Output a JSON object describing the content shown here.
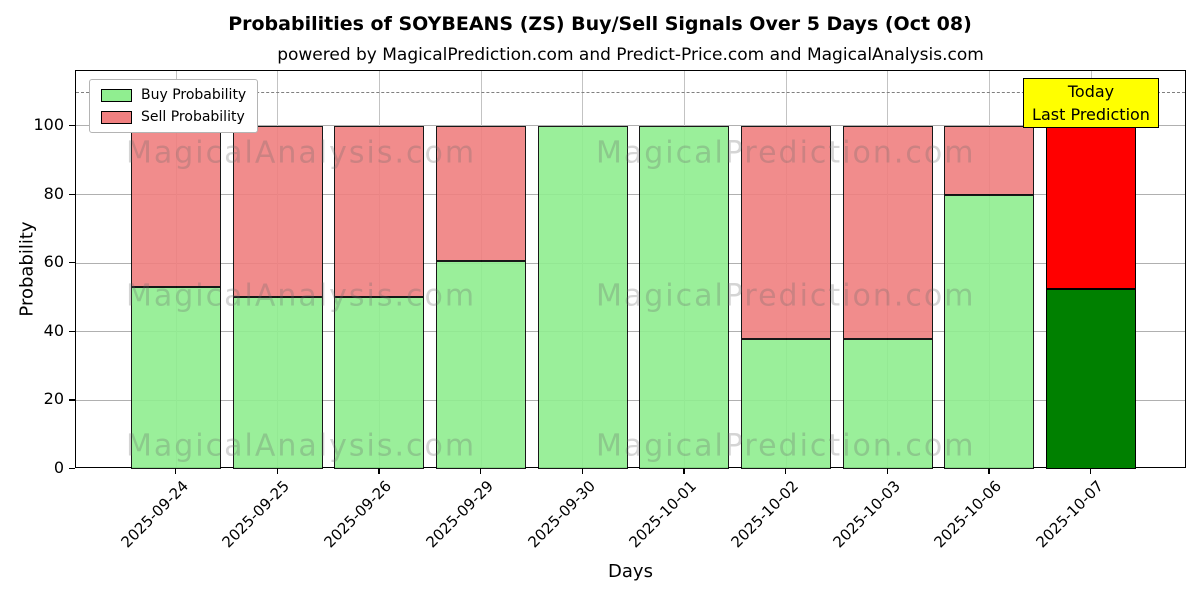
{
  "chart_data": {
    "type": "bar",
    "stacked": true,
    "title": "Probabilities of SOYBEANS (ZS) Buy/Sell Signals Over 5 Days (Oct 08)",
    "subtitle": "powered by MagicalPrediction.com and Predict-Price.com and MagicalAnalysis.com",
    "xlabel": "Days",
    "ylabel": "Probability",
    "categories": [
      "2025-09-24",
      "2025-09-25",
      "2025-09-26",
      "2025-09-29",
      "2025-09-30",
      "2025-10-01",
      "2025-10-02",
      "2025-10-03",
      "2025-10-06",
      "2025-10-07"
    ],
    "series": [
      {
        "name": "Buy Probability",
        "color": "#90EE90",
        "values": [
          53,
          50,
          50,
          60.5,
          100,
          100,
          38,
          38,
          80,
          52.5
        ]
      },
      {
        "name": "Sell Probability",
        "color": "#F08080",
        "values": [
          47,
          50,
          50,
          39.5,
          0,
          0,
          62,
          62,
          20,
          47.5
        ]
      }
    ],
    "today": {
      "index": 9,
      "buy_color": "#008000",
      "sell_color": "#FF0000",
      "label_line1": "Today",
      "label_line2": "Last Prediction",
      "label_bg": "#FFFF00"
    },
    "ylim": [
      0,
      116
    ],
    "yticks": [
      0,
      20,
      40,
      60,
      80,
      100
    ],
    "grid": true,
    "legend_position": "upper left",
    "dashed_line_y": 110,
    "bar_edge_color": "#000000",
    "watermarks": [
      "MagicalAnalysis.com",
      "MagicalPrediction.com"
    ]
  }
}
